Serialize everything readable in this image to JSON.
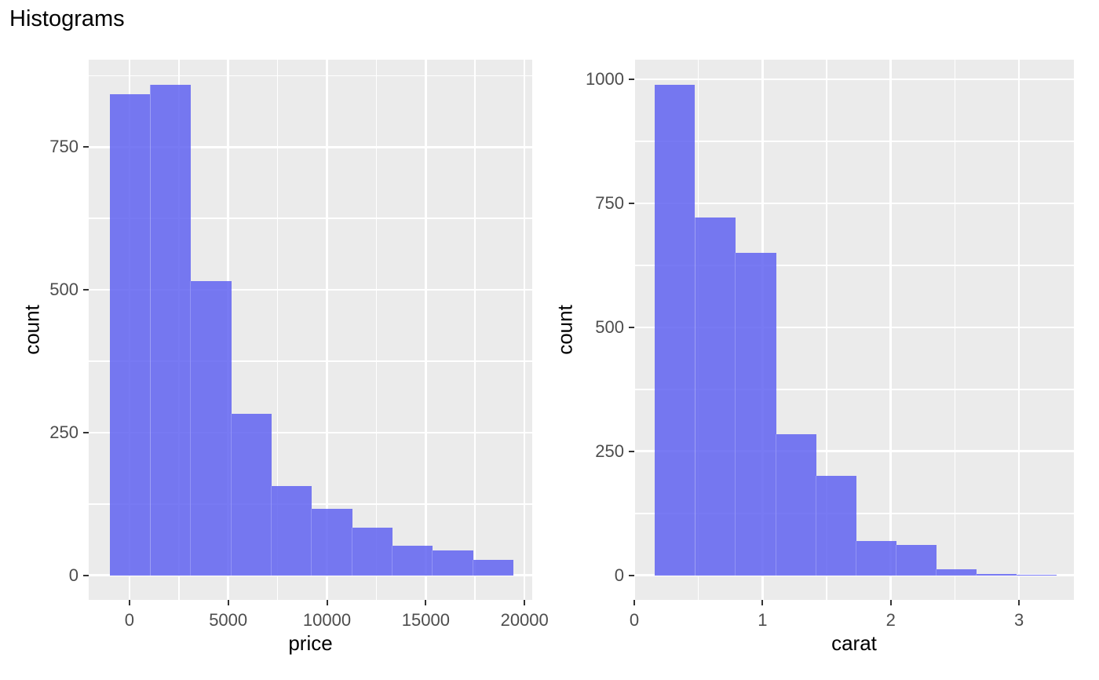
{
  "title": "Histograms",
  "colors": {
    "background": "#FFFFFF",
    "panel_bg": "#EBEBEB",
    "grid": "#FFFFFF",
    "bar_fill_rgba": "rgba(96,99,241,0.85)",
    "bar_seam_rgba": "rgba(255,255,255,0.3)",
    "tick_mark": "#333333",
    "tick_label": "#4D4D4D",
    "axis_title": "#000000",
    "title_color": "#000000"
  },
  "chart_data": [
    {
      "type": "bar",
      "variant": "histogram",
      "xlabel": "price",
      "ylabel": "count",
      "bin_start": -1000,
      "bin_width": 2040,
      "values": [
        843,
        859,
        515,
        283,
        157,
        117,
        84,
        52,
        44,
        27
      ],
      "xlim": [
        -2060,
        20390
      ],
      "ylim": [
        -43,
        903
      ],
      "x_ticks": [
        0,
        5000,
        10000,
        15000,
        20000
      ],
      "x_tick_labels": [
        "0",
        "5000",
        "10000",
        "15000",
        "20000"
      ],
      "y_ticks": [
        0,
        250,
        500,
        750
      ],
      "y_tick_labels": [
        "0",
        "250",
        "500",
        "750"
      ],
      "x_minor_ticks": [
        2500,
        7500,
        12500,
        17500
      ],
      "y_minor_ticks": [
        125,
        375,
        625,
        875
      ],
      "grid": true,
      "legend": false
    },
    {
      "type": "bar",
      "variant": "histogram",
      "xlabel": "carat",
      "ylabel": "count",
      "bin_start": 0.16,
      "bin_width": 0.313,
      "values": [
        989,
        721,
        650,
        284,
        201,
        70,
        62,
        13,
        2,
        1
      ],
      "xlim": [
        0,
        3.428
      ],
      "ylim": [
        -49.5,
        1039.5
      ],
      "x_ticks": [
        0,
        1,
        2,
        3
      ],
      "x_tick_labels": [
        "0",
        "1",
        "2",
        "3"
      ],
      "y_ticks": [
        0,
        250,
        500,
        750,
        1000
      ],
      "y_tick_labels": [
        "0",
        "250",
        "500",
        "750",
        "1000"
      ],
      "x_minor_ticks": [
        0.5,
        1.5,
        2.5
      ],
      "y_minor_ticks": [
        125,
        375,
        625,
        875
      ],
      "grid": true,
      "legend": false
    }
  ]
}
